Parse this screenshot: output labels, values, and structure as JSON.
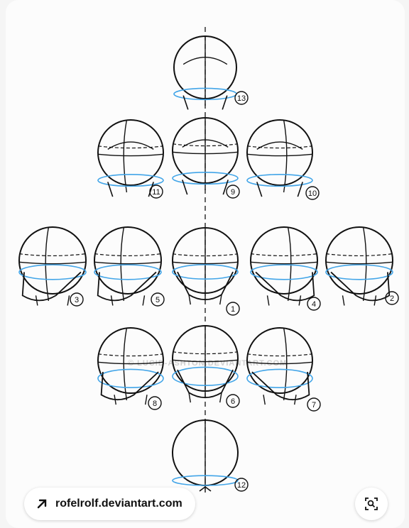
{
  "image": {
    "source_chip_label": "rofelrolf.deviantart.com",
    "watermark": "© LUCID-ASHTON.DEVIANTART.COM",
    "accent_color": "#42a5e8",
    "line_color": "#111111",
    "heads": [
      {
        "label": "13"
      },
      {
        "label": "11"
      },
      {
        "label": "9"
      },
      {
        "label": "10"
      },
      {
        "label": "3"
      },
      {
        "label": "5"
      },
      {
        "label": "1"
      },
      {
        "label": "4"
      },
      {
        "label": "2"
      },
      {
        "label": "8"
      },
      {
        "label": "6"
      },
      {
        "label": "7"
      },
      {
        "label": "12"
      }
    ]
  },
  "icons": {
    "source_chip_icon": "arrow-up-right-icon",
    "visual_search_icon": "visual-search-icon"
  }
}
